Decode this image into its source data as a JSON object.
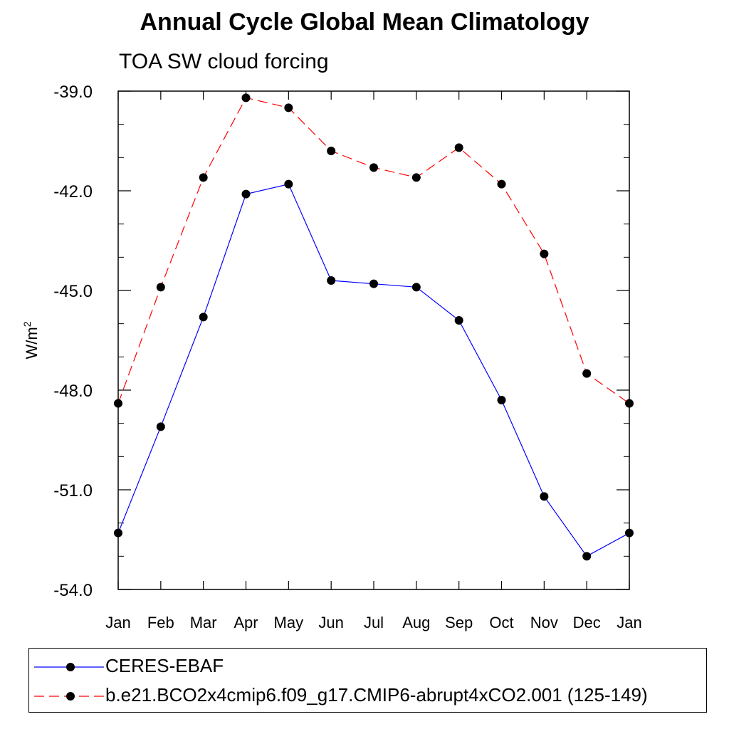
{
  "chart_data": {
    "type": "line",
    "title": "Annual Cycle Global Mean Climatology",
    "subtitle": "TOA SW cloud forcing",
    "ylabel_base": "W/m",
    "ylabel_sup": "2",
    "x": [
      "Jan",
      "Feb",
      "Mar",
      "Apr",
      "May",
      "Jun",
      "Jul",
      "Aug",
      "Sep",
      "Oct",
      "Nov",
      "Dec",
      "Jan"
    ],
    "ylim": [
      -54.0,
      -39.0
    ],
    "yticks": [
      -39.0,
      -42.0,
      -45.0,
      -48.0,
      -51.0,
      -54.0
    ],
    "ytick_labels": [
      "-39.0",
      "-42.0",
      "-45.0",
      "-48.0",
      "-51.0",
      "-54.0"
    ],
    "grid": false,
    "legend_position": "bottom",
    "series": [
      {
        "name": "CERES-EBAF",
        "color": "#0000ff",
        "dash": "solid",
        "values": [
          -52.3,
          -49.1,
          -45.8,
          -42.1,
          -41.8,
          -44.7,
          -44.8,
          -44.9,
          -45.9,
          -48.3,
          -51.2,
          -53.0,
          -52.3
        ]
      },
      {
        "name": "b.e21.BCO2x4cmip6.f09_g17.CMIP6-abrupt4xCO2.001 (125-149)",
        "color": "#ff0000",
        "dash": "dashed",
        "values": [
          -48.4,
          -44.9,
          -41.6,
          -39.2,
          -39.5,
          -40.8,
          -41.3,
          -41.6,
          -40.7,
          -41.8,
          -43.9,
          -47.5,
          -48.4
        ]
      }
    ]
  }
}
